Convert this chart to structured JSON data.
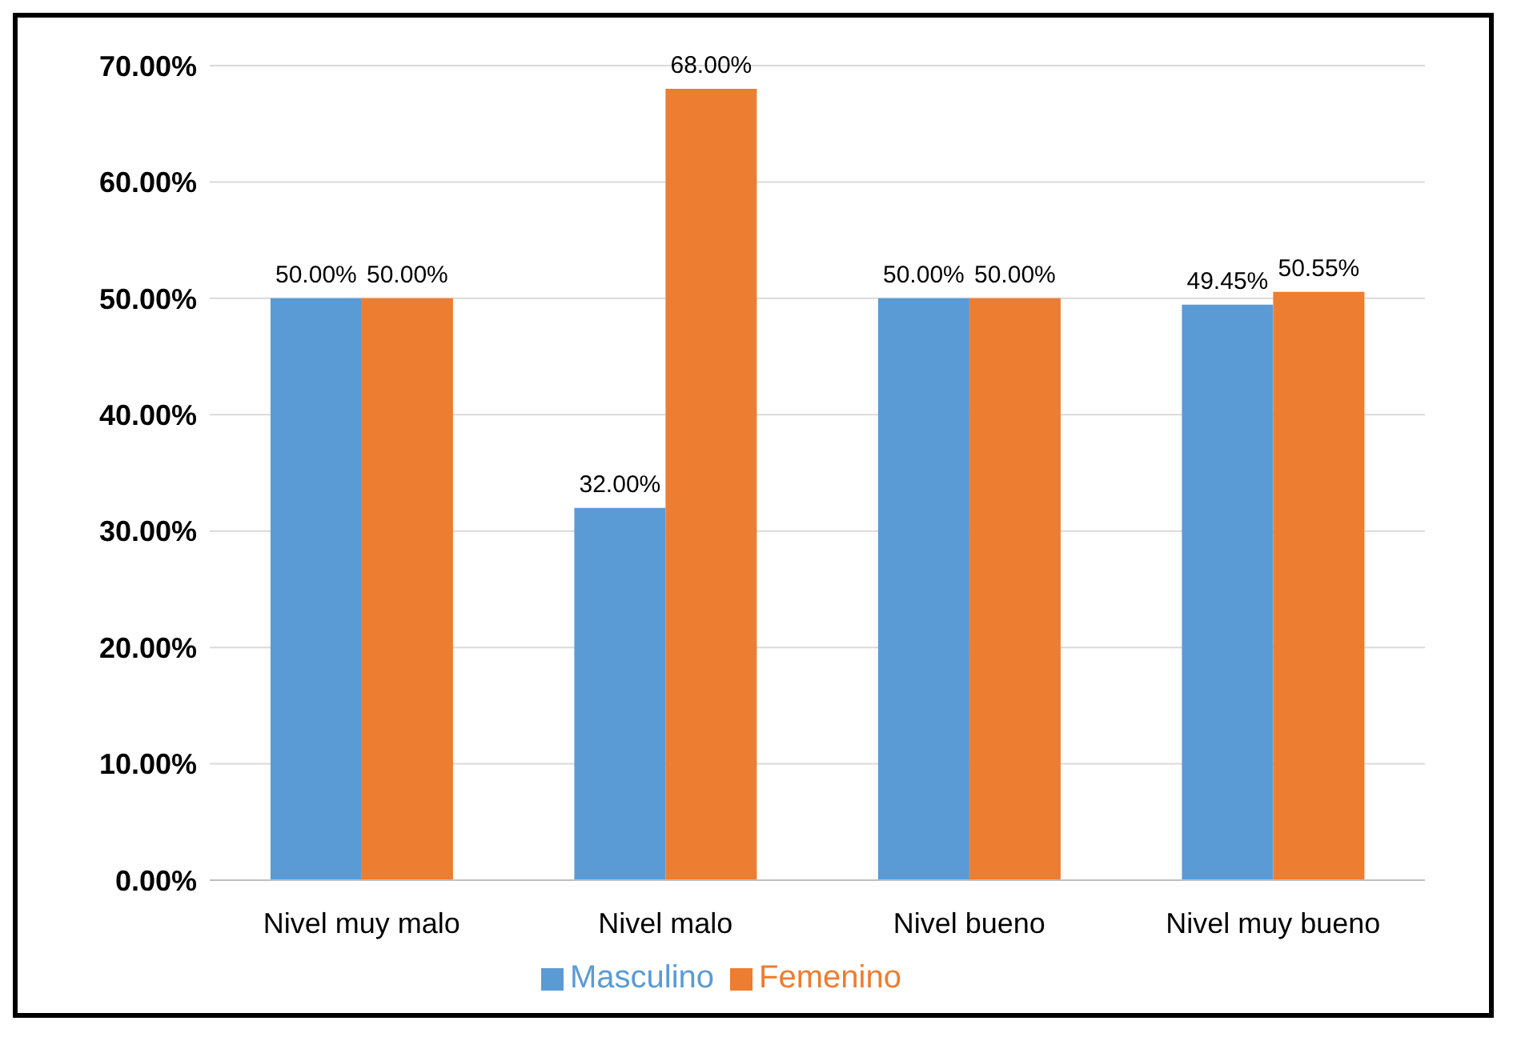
{
  "chart_data": {
    "type": "bar",
    "categories": [
      "Nivel muy malo",
      "Nivel malo",
      "Nivel bueno",
      "Nivel muy bueno"
    ],
    "series": [
      {
        "name": "Masculino",
        "color": "#5b9bd5",
        "values": [
          50,
          32,
          50,
          49.45
        ],
        "value_labels": [
          "50.00%",
          "32.00%",
          "50.00%",
          "49.45%"
        ]
      },
      {
        "name": "Femenino",
        "color": "#ed7d31",
        "values": [
          50,
          68,
          50,
          50.55
        ],
        "value_labels": [
          "50.00%",
          "68.00%",
          "50.00%",
          "50.55%"
        ]
      }
    ],
    "ylim": [
      0,
      70
    ],
    "yticks": [
      {
        "value": 0,
        "label": "0.00%"
      },
      {
        "value": 10,
        "label": "10.00%"
      },
      {
        "value": 20,
        "label": "20.00%"
      },
      {
        "value": 30,
        "label": "30.00%"
      },
      {
        "value": 40,
        "label": "40.00%"
      },
      {
        "value": 50,
        "label": "50.00%"
      },
      {
        "value": 60,
        "label": "60.00%"
      },
      {
        "value": 70,
        "label": "70.00%"
      }
    ],
    "grid": "y",
    "legend": "bottom"
  }
}
